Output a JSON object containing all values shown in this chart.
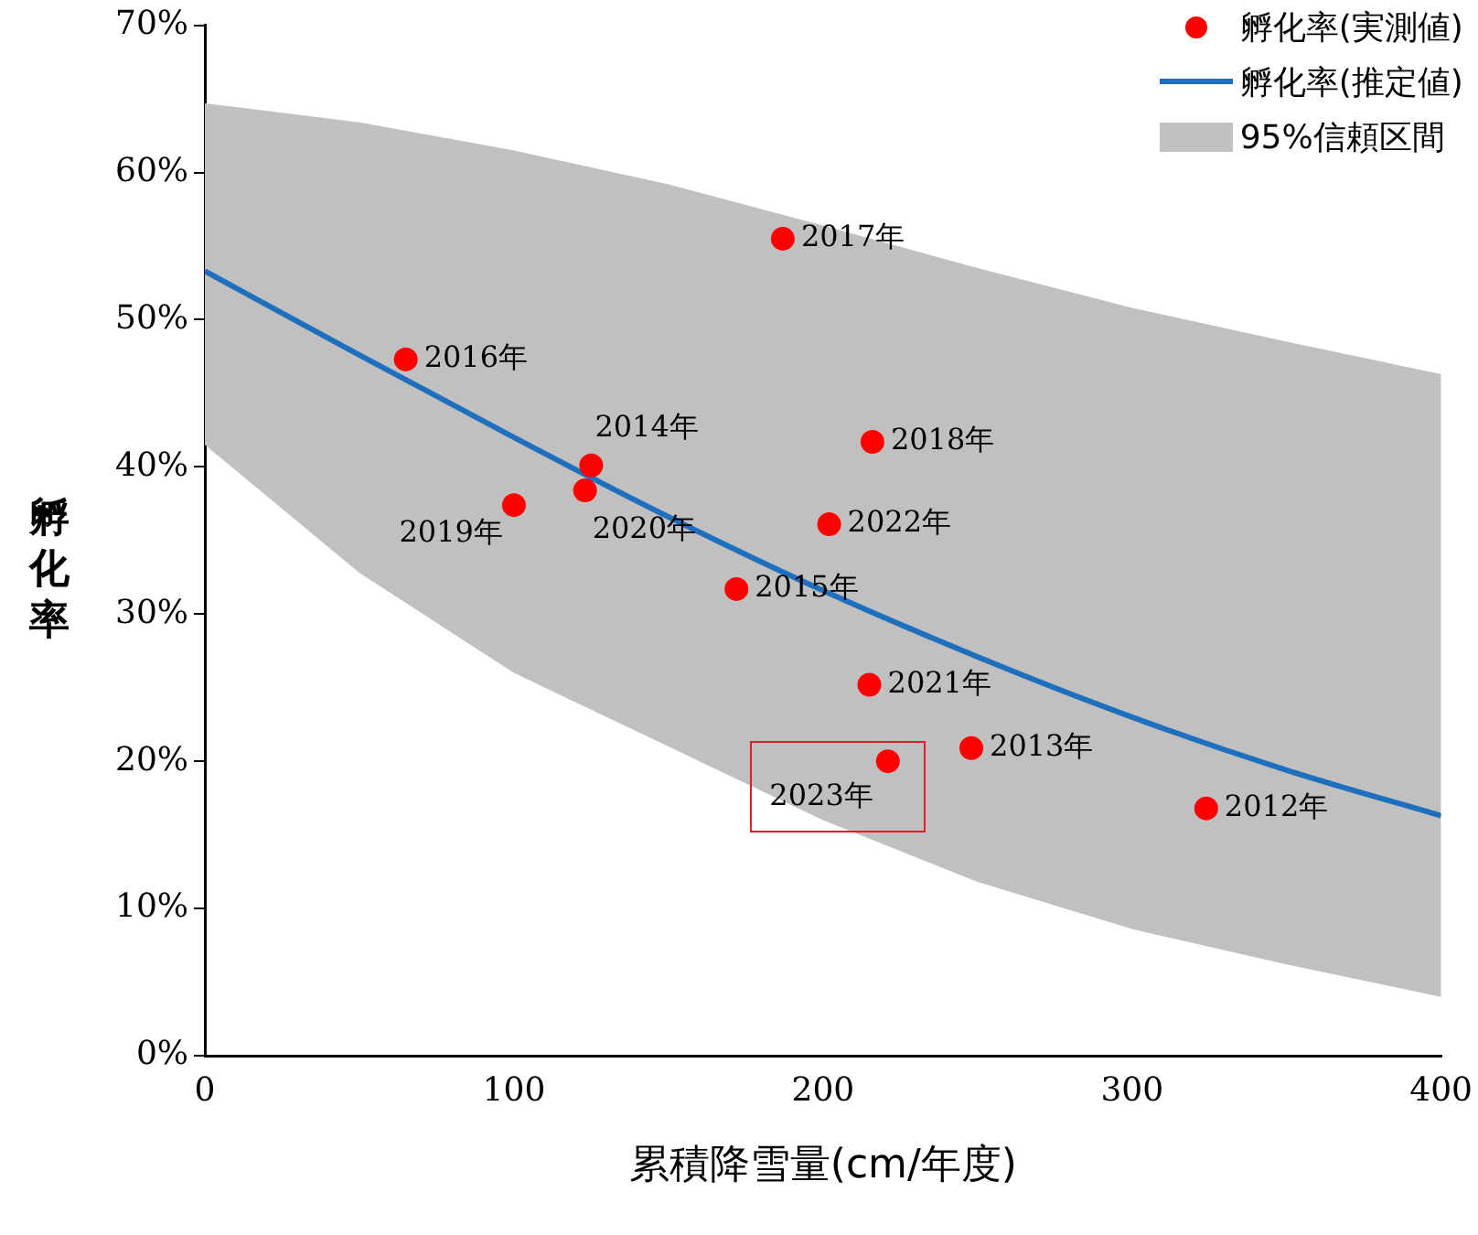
{
  "chart_data": {
    "type": "scatter",
    "xlabel": "累積降雪量(cm/年度)",
    "ylabel": "孵化率",
    "xlim": [
      0,
      400
    ],
    "xticks": [
      0,
      100,
      200,
      300,
      400
    ],
    "ylim": [
      0,
      70
    ],
    "yticks": [
      {
        "value": 0,
        "label": "0%"
      },
      {
        "value": 10,
        "label": "10%"
      },
      {
        "value": 20,
        "label": "20%"
      },
      {
        "value": 30,
        "label": "30%"
      },
      {
        "value": 40,
        "label": "40%"
      },
      {
        "value": 50,
        "label": "50%"
      },
      {
        "value": 60,
        "label": "60%"
      },
      {
        "value": 70,
        "label": "70%"
      }
    ],
    "grid": false,
    "legend": "top right",
    "series": [
      {
        "name": "孵化率(実測値)",
        "type": "scatter",
        "marker": "circle",
        "color": "#ff0000",
        "x": [
          65,
          100,
          125,
          123,
          187,
          216,
          202,
          172,
          215,
          221,
          248,
          324
        ],
        "values": [
          47.3,
          37.4,
          40.1,
          38.4,
          55.5,
          41.7,
          36.1,
          31.7,
          25.2,
          20.0,
          20.9,
          16.8
        ]
      },
      {
        "name": "孵化率(推定値)",
        "type": "line",
        "color": "#1f6fbf",
        "line_style": "solid",
        "marker": "none",
        "x": [
          0,
          50,
          100,
          150,
          200,
          250,
          300,
          350,
          400
        ],
        "values": [
          53.3,
          47.6,
          42.0,
          36.6,
          31.6,
          27.1,
          23.0,
          19.4,
          16.3
        ],
        "upper": [
          64.7,
          63.4,
          61.5,
          59.2,
          56.4,
          53.5,
          50.8,
          48.5,
          46.3
        ],
        "lower": [
          41.5,
          32.8,
          26.0,
          21.0,
          16.0,
          11.8,
          8.6,
          6.2,
          4.0
        ]
      },
      {
        "name": "95%信頼区間",
        "type": "area",
        "color": "#c0c0c0"
      }
    ],
    "annotations": [
      {
        "text": "2016年",
        "x": 65,
        "y": 47.3
      },
      {
        "text": "2019年",
        "x": 100,
        "y": 37.4
      },
      {
        "text": "2014年",
        "x": 125,
        "y": 40.1
      },
      {
        "text": "2020年",
        "x": 123,
        "y": 38.4
      },
      {
        "text": "2017年",
        "x": 187,
        "y": 55.5
      },
      {
        "text": "2018年",
        "x": 216,
        "y": 41.7
      },
      {
        "text": "2022年",
        "x": 202,
        "y": 36.1
      },
      {
        "text": "2015年",
        "x": 172,
        "y": 31.7
      },
      {
        "text": "2021年",
        "x": 215,
        "y": 25.2
      },
      {
        "text": "2023年",
        "x": 221,
        "y": 20.0
      },
      {
        "text": "2013年",
        "x": 248,
        "y": 20.9
      },
      {
        "text": "2012年",
        "x": 324,
        "y": 16.8
      }
    ]
  }
}
